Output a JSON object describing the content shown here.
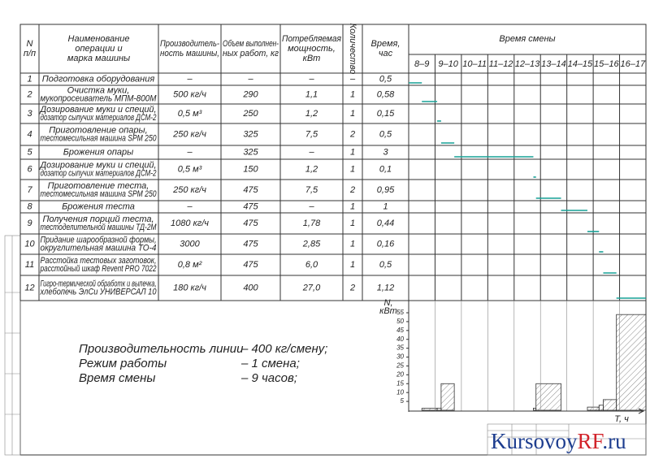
{
  "table": {
    "columns": [
      [
        "N",
        "п/п"
      ],
      [
        "Наименование",
        "операции и",
        "марка машины"
      ],
      [
        "Производитель-",
        "ность машины,"
      ],
      [
        "Объем выполнен-",
        "ных работ, кг"
      ],
      [
        "Потребляемая",
        "мощность,",
        "кВт"
      ],
      [
        "Количество"
      ],
      [
        "Время,",
        "час"
      ],
      [
        "Время смены"
      ]
    ],
    "shift_hours": [
      "8–9",
      "9–10",
      "10–11",
      "11–12",
      "12–13",
      "13–14",
      "14–15",
      "15–16",
      "16–17"
    ],
    "rows": [
      [
        "1",
        [
          "Подготовка оборудования"
        ],
        "–",
        "–",
        "–",
        "–",
        "0,5"
      ],
      [
        "2",
        [
          "Очистка муки,",
          "мукопросеиватель МПМ-800М"
        ],
        "500 кг/ч",
        "290",
        "1,1",
        "1",
        "0,58"
      ],
      [
        "3",
        [
          "Дозирование муки и специй,",
          "дозатор сыпучих материалов ДСМ-2"
        ],
        "0,5 м³",
        "250",
        "1,2",
        "1",
        "0,15"
      ],
      [
        "4",
        [
          "Приготовление опары,",
          "тестомесильная машина SPM 250"
        ],
        "250 кг/ч",
        "325",
        "7,5",
        "2",
        "0,5"
      ],
      [
        "5",
        [
          "Брожения опары"
        ],
        "–",
        "325",
        "–",
        "1",
        "3"
      ],
      [
        "6",
        [
          "Дозирование муки и специй,",
          "дозатор сыпучих материалов ДСМ-2"
        ],
        "0,5 м³",
        "150",
        "1,2",
        "1",
        "0,1"
      ],
      [
        "7",
        [
          "Приготовление теста,",
          "тестомесильная машина SPM 250"
        ],
        "250 кг/ч",
        "475",
        "7,5",
        "2",
        "0,95"
      ],
      [
        "8",
        [
          "Брожения теста"
        ],
        "–",
        "475",
        "–",
        "1",
        "1"
      ],
      [
        "9",
        [
          "Получения порций теста,",
          "тестоделительной машины ТД-2М"
        ],
        "1080 кг/ч",
        "475",
        "1,78",
        "1",
        "0,44"
      ],
      [
        "10",
        [
          "Придание шарообразной формы,",
          "округлительная машина ТО-4"
        ],
        "3000",
        "475",
        "2,85",
        "1",
        "0,16"
      ],
      [
        "11",
        [
          "Расстойка тестовых заготовок,",
          "расстойный шкаф Revent PRO 7022"
        ],
        "0,8 м²",
        "475",
        "6,0",
        "1",
        "0,5"
      ],
      [
        "12",
        [
          "Гигро-термической обработк и выпечка,",
          "хлебопечь ЭлСи УНИВЕРСАЛ 10"
        ],
        "180 кг/ч",
        "400",
        "27,0",
        "2",
        "1,12"
      ]
    ]
  },
  "power_chart": {
    "y_label": [
      "N,",
      "кВт"
    ],
    "x_label": "Т, ч",
    "ylim": [
      0,
      55
    ],
    "yticks": [
      5,
      10,
      15,
      20,
      25,
      30,
      35,
      40,
      45,
      50,
      55
    ]
  },
  "notes": [
    [
      "Производительность линии",
      "– 400 кг/смену;"
    ],
    [
      "Режим работы",
      "– 1 смена;"
    ],
    [
      "Время смены",
      "– 9 часов;"
    ]
  ],
  "watermark": [
    "Kursovoy",
    "RF",
    ".ru"
  ]
}
